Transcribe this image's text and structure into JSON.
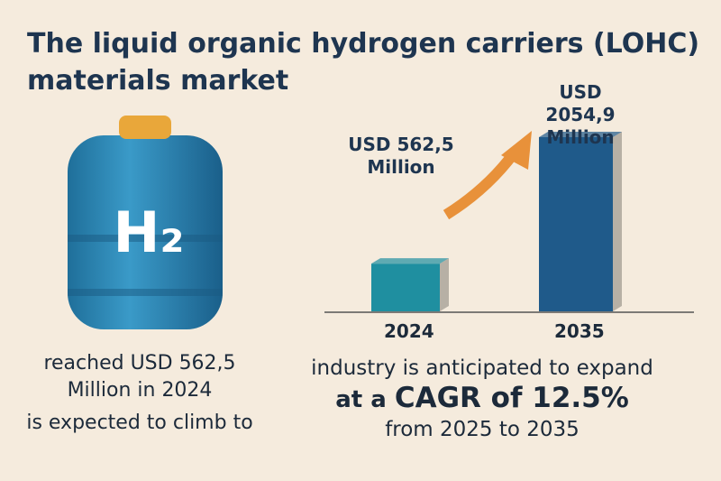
{
  "title_lines": [
    "The liquid organic hydrogen carriers (LOHC)",
    "materials market"
  ],
  "tank_label": "H₂",
  "chart": {
    "type": "bar",
    "categories": [
      "2024",
      "2035"
    ],
    "values": [
      562.5,
      2054.9
    ],
    "value_labels": [
      "USD 562,5 Million",
      "USD 2054,9 Million"
    ],
    "colors": [
      "#1f8fa0",
      "#1f5a8a"
    ]
  },
  "left_caption": [
    "reached USD 562,5",
    "Million in 2024",
    "is expected to climb to"
  ],
  "right_caption": {
    "line1": "industry is anticipated to expand",
    "prefix": "at a",
    "highlight": "CAGR of 12.5%",
    "line3": "from 2025 to 2035"
  }
}
